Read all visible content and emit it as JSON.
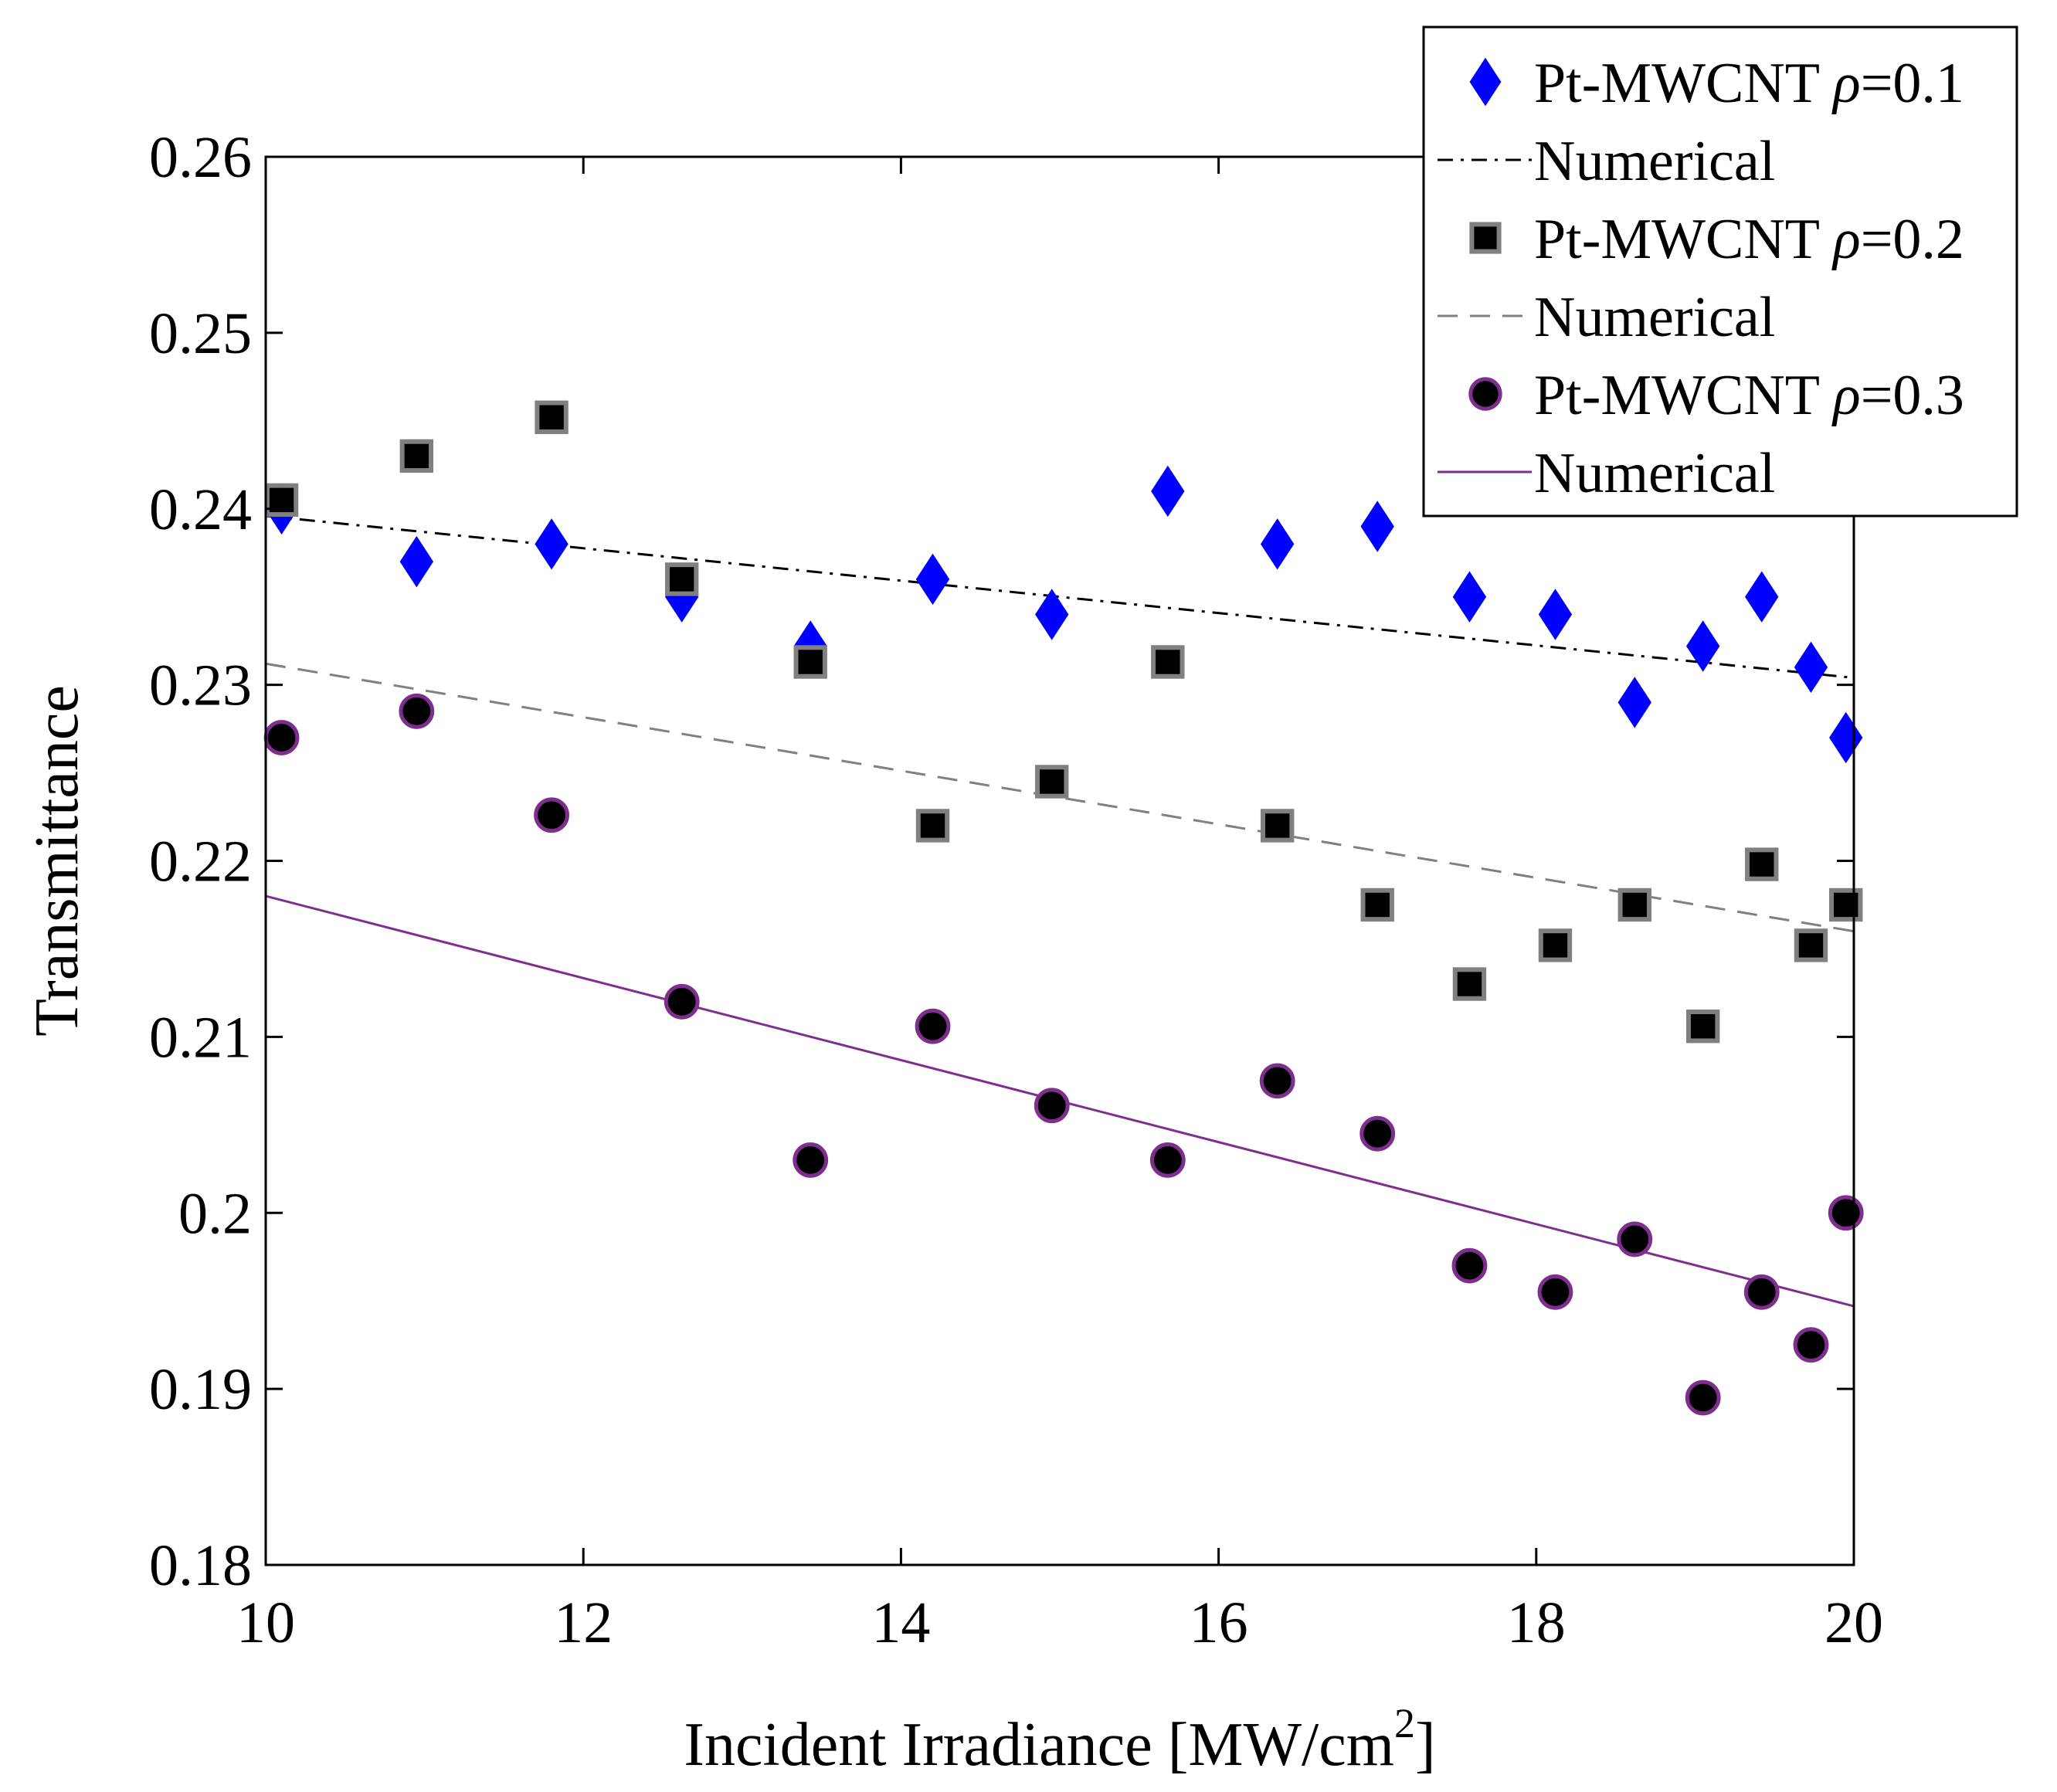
{
  "chart_data": {
    "type": "scatter",
    "title": "",
    "xlabel": "Incident Irradiance [MW/cm",
    "xlabel_superscript": "2",
    "xlabel_close": "]",
    "ylabel": "Transmittance",
    "xlim": [
      10,
      20
    ],
    "ylim": [
      0.18,
      0.26
    ],
    "x_ticks": [
      10,
      12,
      14,
      16,
      18,
      20
    ],
    "x_tick_labels": [
      "10",
      "12",
      "14",
      "16",
      "18",
      "20"
    ],
    "y_ticks": [
      0.18,
      0.19,
      0.2,
      0.21,
      0.22,
      0.23,
      0.24,
      0.25,
      0.26
    ],
    "y_tick_labels": [
      "0.18",
      "0.19",
      "0.2",
      "0.21",
      "0.22",
      "0.23",
      "0.24",
      "0.25",
      "0.26"
    ],
    "grid": false,
    "legend_position": "top-right",
    "series": [
      {
        "name": "Pt-MWCNT ρ=0.1",
        "legend_name": "Pt-MWCNT ",
        "legend_symbol": "ρ",
        "legend_value": "=0.1",
        "kind": "scatter",
        "marker": "diamond",
        "color": "#0000ff",
        "x": [
          10.1,
          10.95,
          11.8,
          12.62,
          13.43,
          14.2,
          14.95,
          15.68,
          16.37,
          17.0,
          17.58,
          18.12,
          18.62,
          19.05,
          19.42,
          19.73,
          19.95
        ],
        "y": [
          0.24,
          0.237,
          0.238,
          0.235,
          0.2322,
          0.236,
          0.234,
          0.241,
          0.238,
          0.239,
          0.235,
          0.234,
          0.229,
          0.2322,
          0.235,
          0.231,
          0.227
        ]
      },
      {
        "name": "Numerical (ρ=0.1)",
        "legend_name": "Numerical",
        "kind": "line",
        "dash": "dashdot",
        "color": "#000000",
        "x": [
          10,
          20
        ],
        "y": [
          0.2396,
          0.2304
        ]
      },
      {
        "name": "Pt-MWCNT ρ=0.2",
        "legend_name": "Pt-MWCNT ",
        "legend_symbol": "ρ",
        "legend_value": "=0.2",
        "kind": "scatter",
        "marker": "square",
        "color": "#000000",
        "edge_color": "#808080",
        "x": [
          10.1,
          10.95,
          11.8,
          12.62,
          13.43,
          14.2,
          14.95,
          15.68,
          16.37,
          17.0,
          17.58,
          18.12,
          18.62,
          19.05,
          19.42,
          19.73,
          19.95
        ],
        "y": [
          0.2405,
          0.243,
          0.2452,
          0.236,
          0.2313,
          0.222,
          0.2245,
          0.2313,
          0.222,
          0.2175,
          0.213,
          0.2152,
          0.2175,
          0.2106,
          0.2198,
          0.2152,
          0.2175
        ]
      },
      {
        "name": "Numerical (ρ=0.2)",
        "legend_name": "Numerical",
        "kind": "line",
        "dash": "dashed",
        "color": "#808080",
        "x": [
          10,
          20
        ],
        "y": [
          0.2312,
          0.216
        ]
      },
      {
        "name": "Pt-MWCNT ρ=0.3",
        "legend_name": "Pt-MWCNT ",
        "legend_symbol": "ρ",
        "legend_value": "=0.3",
        "kind": "scatter",
        "marker": "circle",
        "color": "#000000",
        "edge_color": "#7e2f8e",
        "x": [
          10.1,
          10.95,
          11.8,
          12.62,
          13.43,
          14.2,
          14.95,
          15.68,
          16.37,
          17.0,
          17.58,
          18.12,
          18.62,
          19.05,
          19.42,
          19.73,
          19.95
        ],
        "y": [
          0.227,
          0.2285,
          0.2226,
          0.212,
          0.203,
          0.2106,
          0.2061,
          0.203,
          0.2075,
          0.2045,
          0.197,
          0.1955,
          0.1985,
          0.1895,
          0.1955,
          0.1925,
          0.2
        ]
      },
      {
        "name": "Numerical (ρ=0.3)",
        "legend_name": "Numerical",
        "kind": "line",
        "dash": "solid",
        "color": "#7e2f8e",
        "x": [
          10,
          20
        ],
        "y": [
          0.218,
          0.1947
        ]
      }
    ]
  }
}
